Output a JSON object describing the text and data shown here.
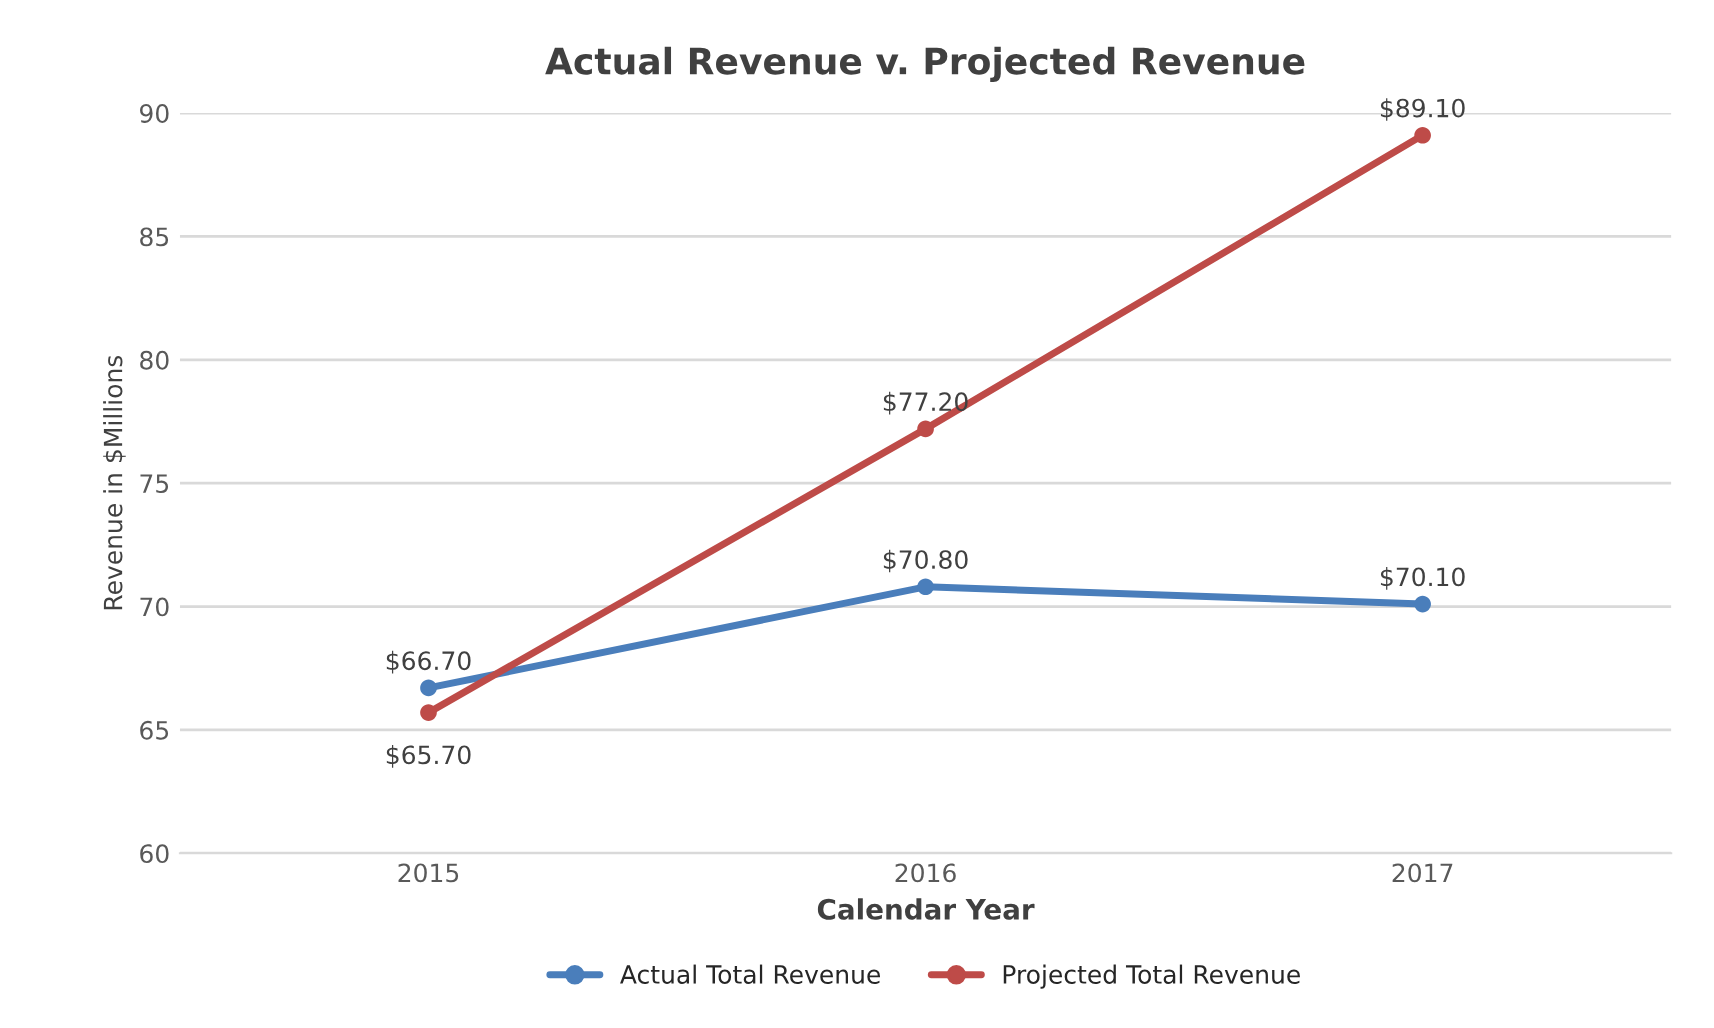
{
  "chart_data": {
    "type": "line",
    "title": "Actual Revenue v. Projected Revenue",
    "xlabel": "Calendar Year",
    "ylabel": "Revenue in $Millions",
    "categories": [
      "2015",
      "2016",
      "2017"
    ],
    "series": [
      {
        "name": "Actual Total Revenue",
        "color": "#4a7ebb",
        "values": [
          66.7,
          70.8,
          70.1
        ],
        "value_labels": [
          "$66.70",
          "$70.80",
          "$70.10"
        ]
      },
      {
        "name": "Projected Total Revenue",
        "color": "#be4b48",
        "values": [
          65.7,
          77.2,
          89.1
        ],
        "value_labels": [
          "$65.70",
          "$77.20",
          "$89.10"
        ]
      }
    ],
    "ylim": [
      60,
      90
    ],
    "yticks": [
      60,
      65,
      70,
      75,
      80,
      85,
      90
    ],
    "grid": "y",
    "legend": "bottom",
    "marker": "circle",
    "line_style": "solid"
  }
}
